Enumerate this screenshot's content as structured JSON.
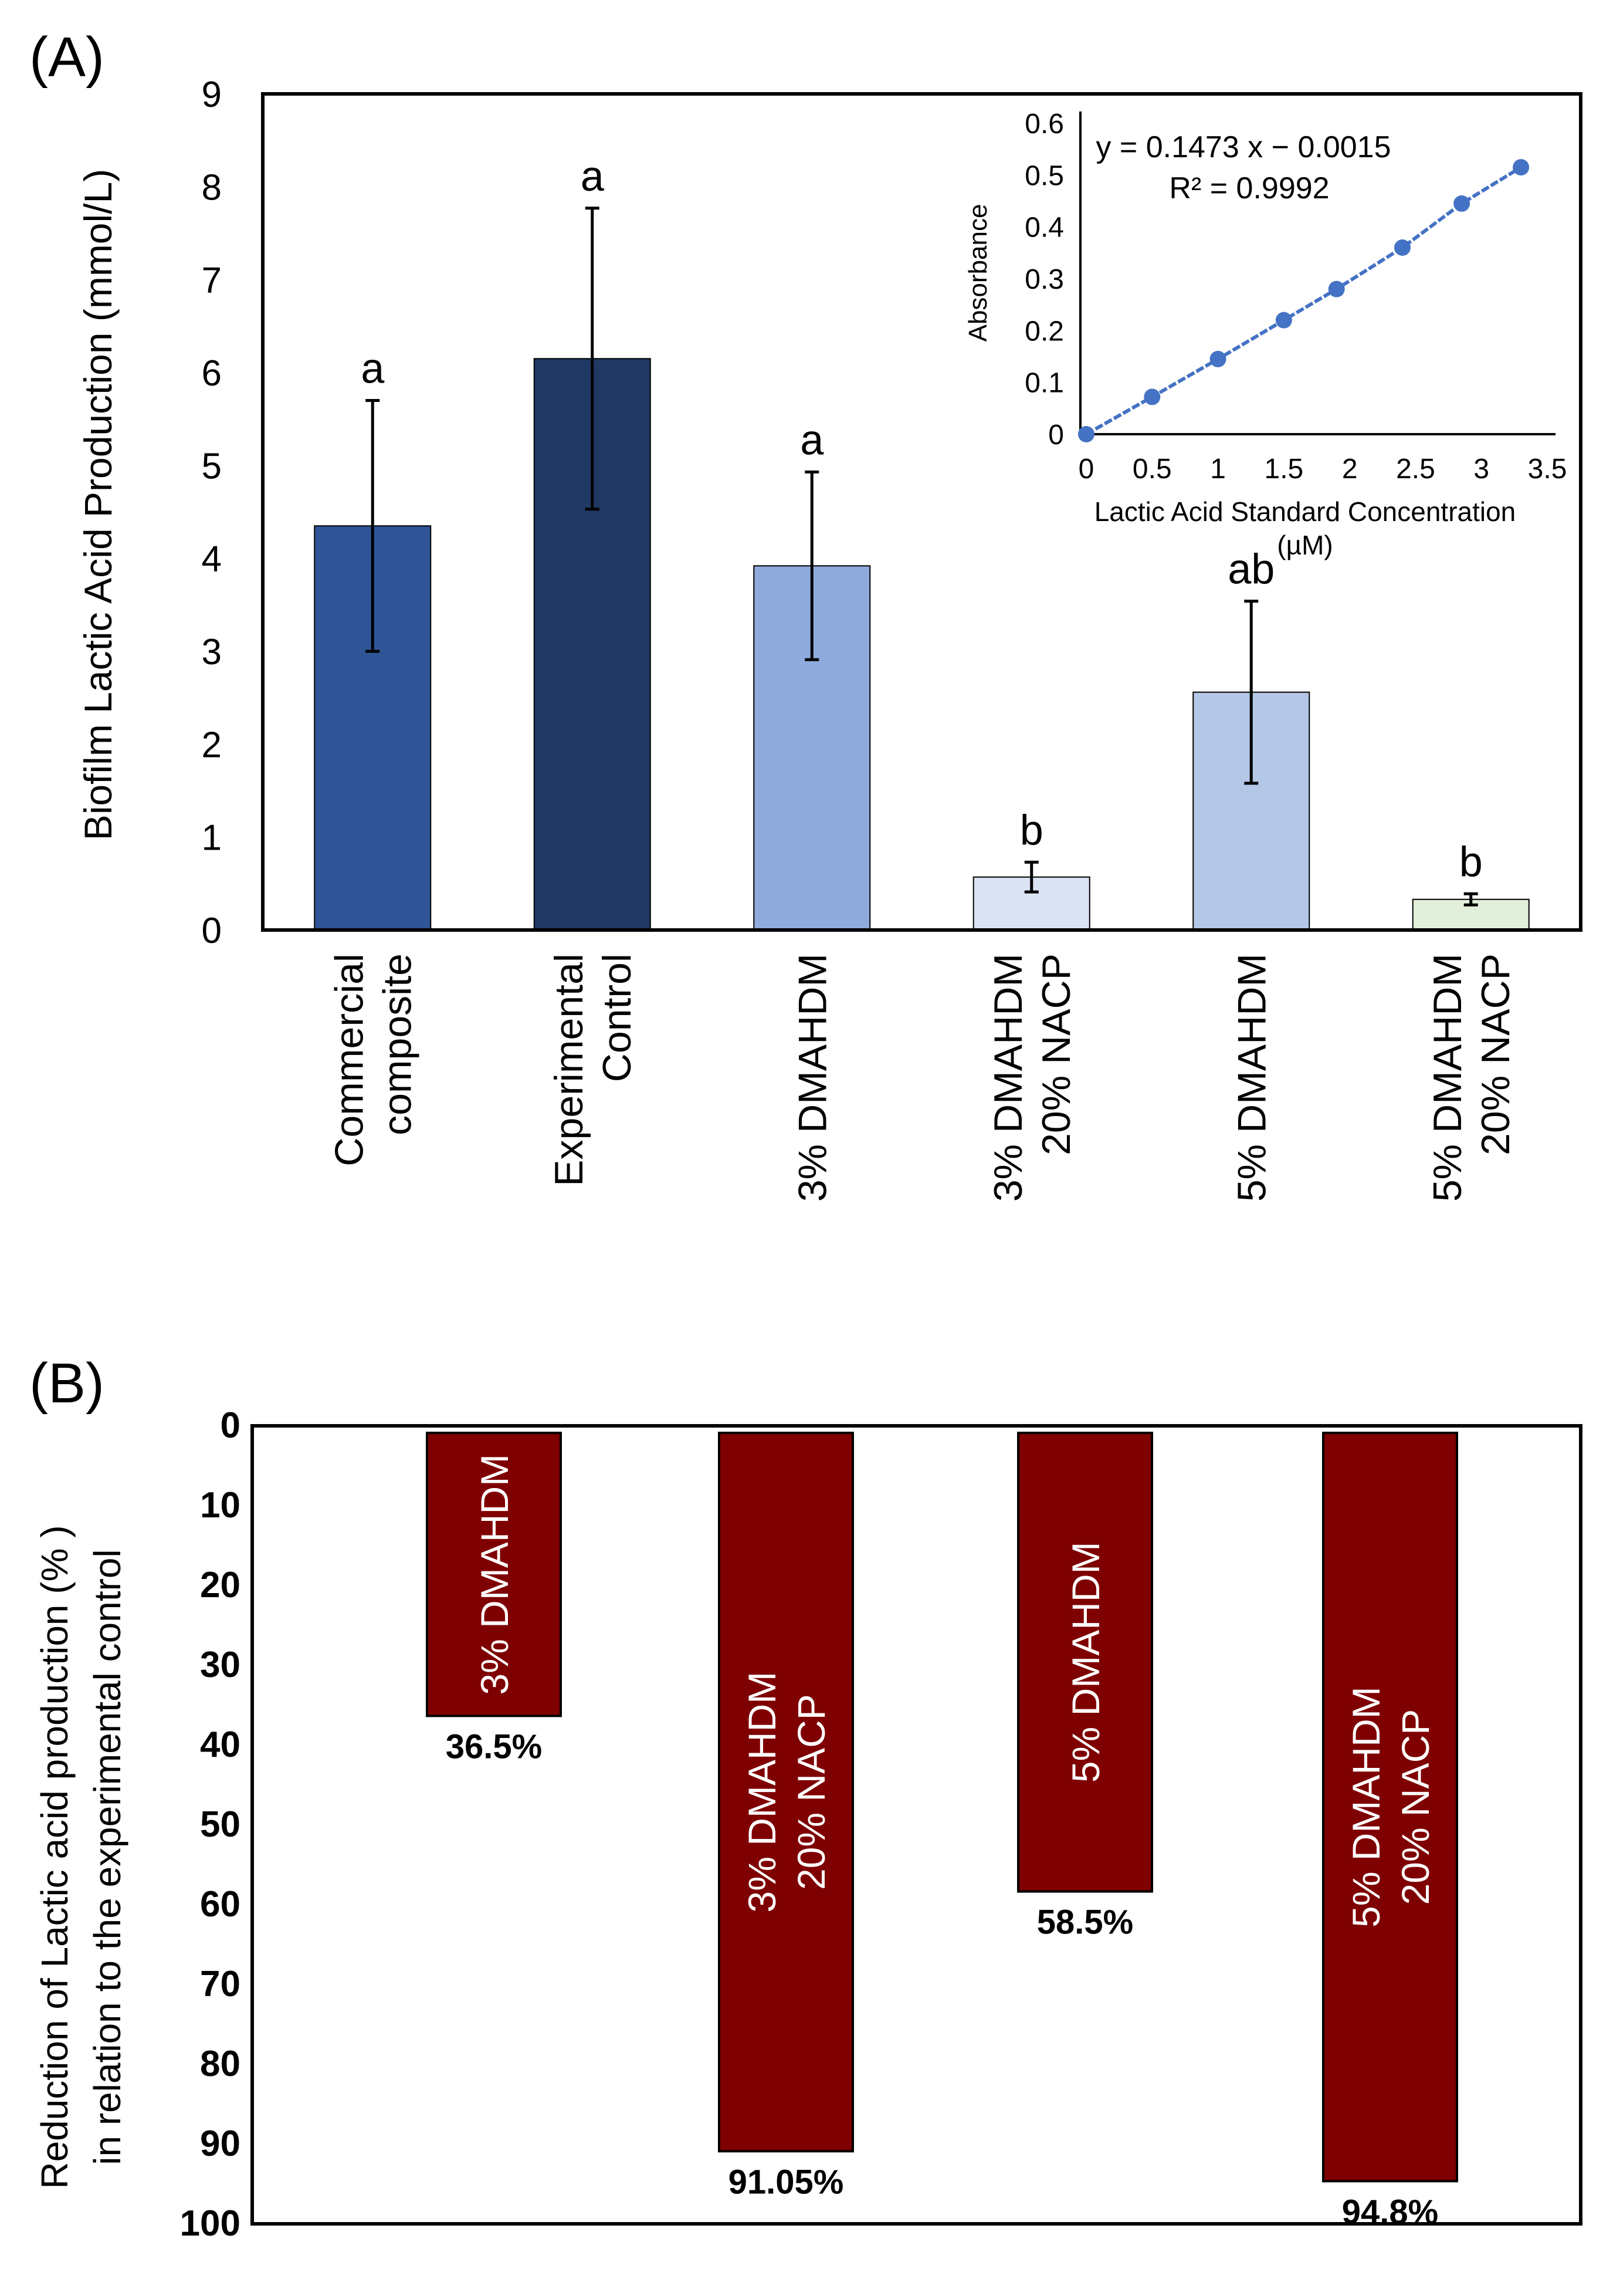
{
  "panel_a": {
    "label": "(A)",
    "chart_data": {
      "type": "bar",
      "ylabel": "Biofilm Lactic Acid Production (mmol/L)",
      "ylim": [
        0,
        9
      ],
      "yticks": [
        "0",
        "1",
        "2",
        "3",
        "4",
        "5",
        "6",
        "7",
        "8",
        "9"
      ],
      "categories": [
        [
          "Commercial",
          "composite"
        ],
        [
          "Experimental",
          "Control"
        ],
        [
          "3% DMAHDM"
        ],
        [
          "3% DMAHDM",
          "20% NACP"
        ],
        [
          "5% DMAHDM"
        ],
        [
          "5% DMAHDM",
          "20% NACP"
        ]
      ],
      "values": [
        4.35,
        6.15,
        3.92,
        0.57,
        2.56,
        0.33
      ],
      "errors": [
        1.35,
        1.62,
        1.01,
        0.16,
        0.98,
        0.06
      ],
      "letters": [
        "a",
        "a",
        "a",
        "b",
        "ab",
        "b"
      ],
      "colors": [
        "#2f5597",
        "#203864",
        "#8faadc",
        "#dae3f3",
        "#b4c7e7",
        "#e2efda"
      ]
    },
    "inset": {
      "chart_data": {
        "type": "scatter",
        "xlabel": [
          "Lactic Acid Standard Concentration",
          "(µM)"
        ],
        "ylabel": "Absorbance",
        "xlim": [
          0,
          3.5
        ],
        "ylim": [
          0,
          0.6
        ],
        "xticks": [
          "0",
          "0.5",
          "1",
          "1.5",
          "2",
          "2.5",
          "3",
          "3.5"
        ],
        "yticks": [
          "0",
          "0.1",
          "0.2",
          "0.3",
          "0.4",
          "0.5",
          "0.6"
        ],
        "x": [
          0,
          0.5,
          1.0,
          1.5,
          1.9,
          2.4,
          2.85,
          3.3
        ],
        "y": [
          0.0,
          0.072,
          0.145,
          0.22,
          0.28,
          0.36,
          0.445,
          0.515
        ],
        "equation": "y = 0.1473 x − 0.0015",
        "r2": "R² = 0.9992",
        "color": "#4472c4"
      }
    }
  },
  "panel_b": {
    "label": "(B)",
    "chart_data": {
      "type": "bar",
      "ylabel": [
        "Reduction of Lactic acid production (% )",
        "in relation to the experimental control"
      ],
      "ylim": [
        0,
        100
      ],
      "inverted": true,
      "yticks": [
        "0",
        "10",
        "20",
        "30",
        "40",
        "50",
        "60",
        "70",
        "80",
        "90",
        "100"
      ],
      "categories": [
        [
          "3% DMAHDM"
        ],
        [
          "3% DMAHDM",
          "20% NACP"
        ],
        [
          "5% DMAHDM"
        ],
        [
          "5% DMAHDM",
          "20% NACP"
        ]
      ],
      "values": [
        36.5,
        91.05,
        58.5,
        94.8
      ],
      "value_labels": [
        "36.5%",
        "91.05%",
        "58.5%",
        "94.8%"
      ],
      "color": "#7f0000"
    }
  }
}
